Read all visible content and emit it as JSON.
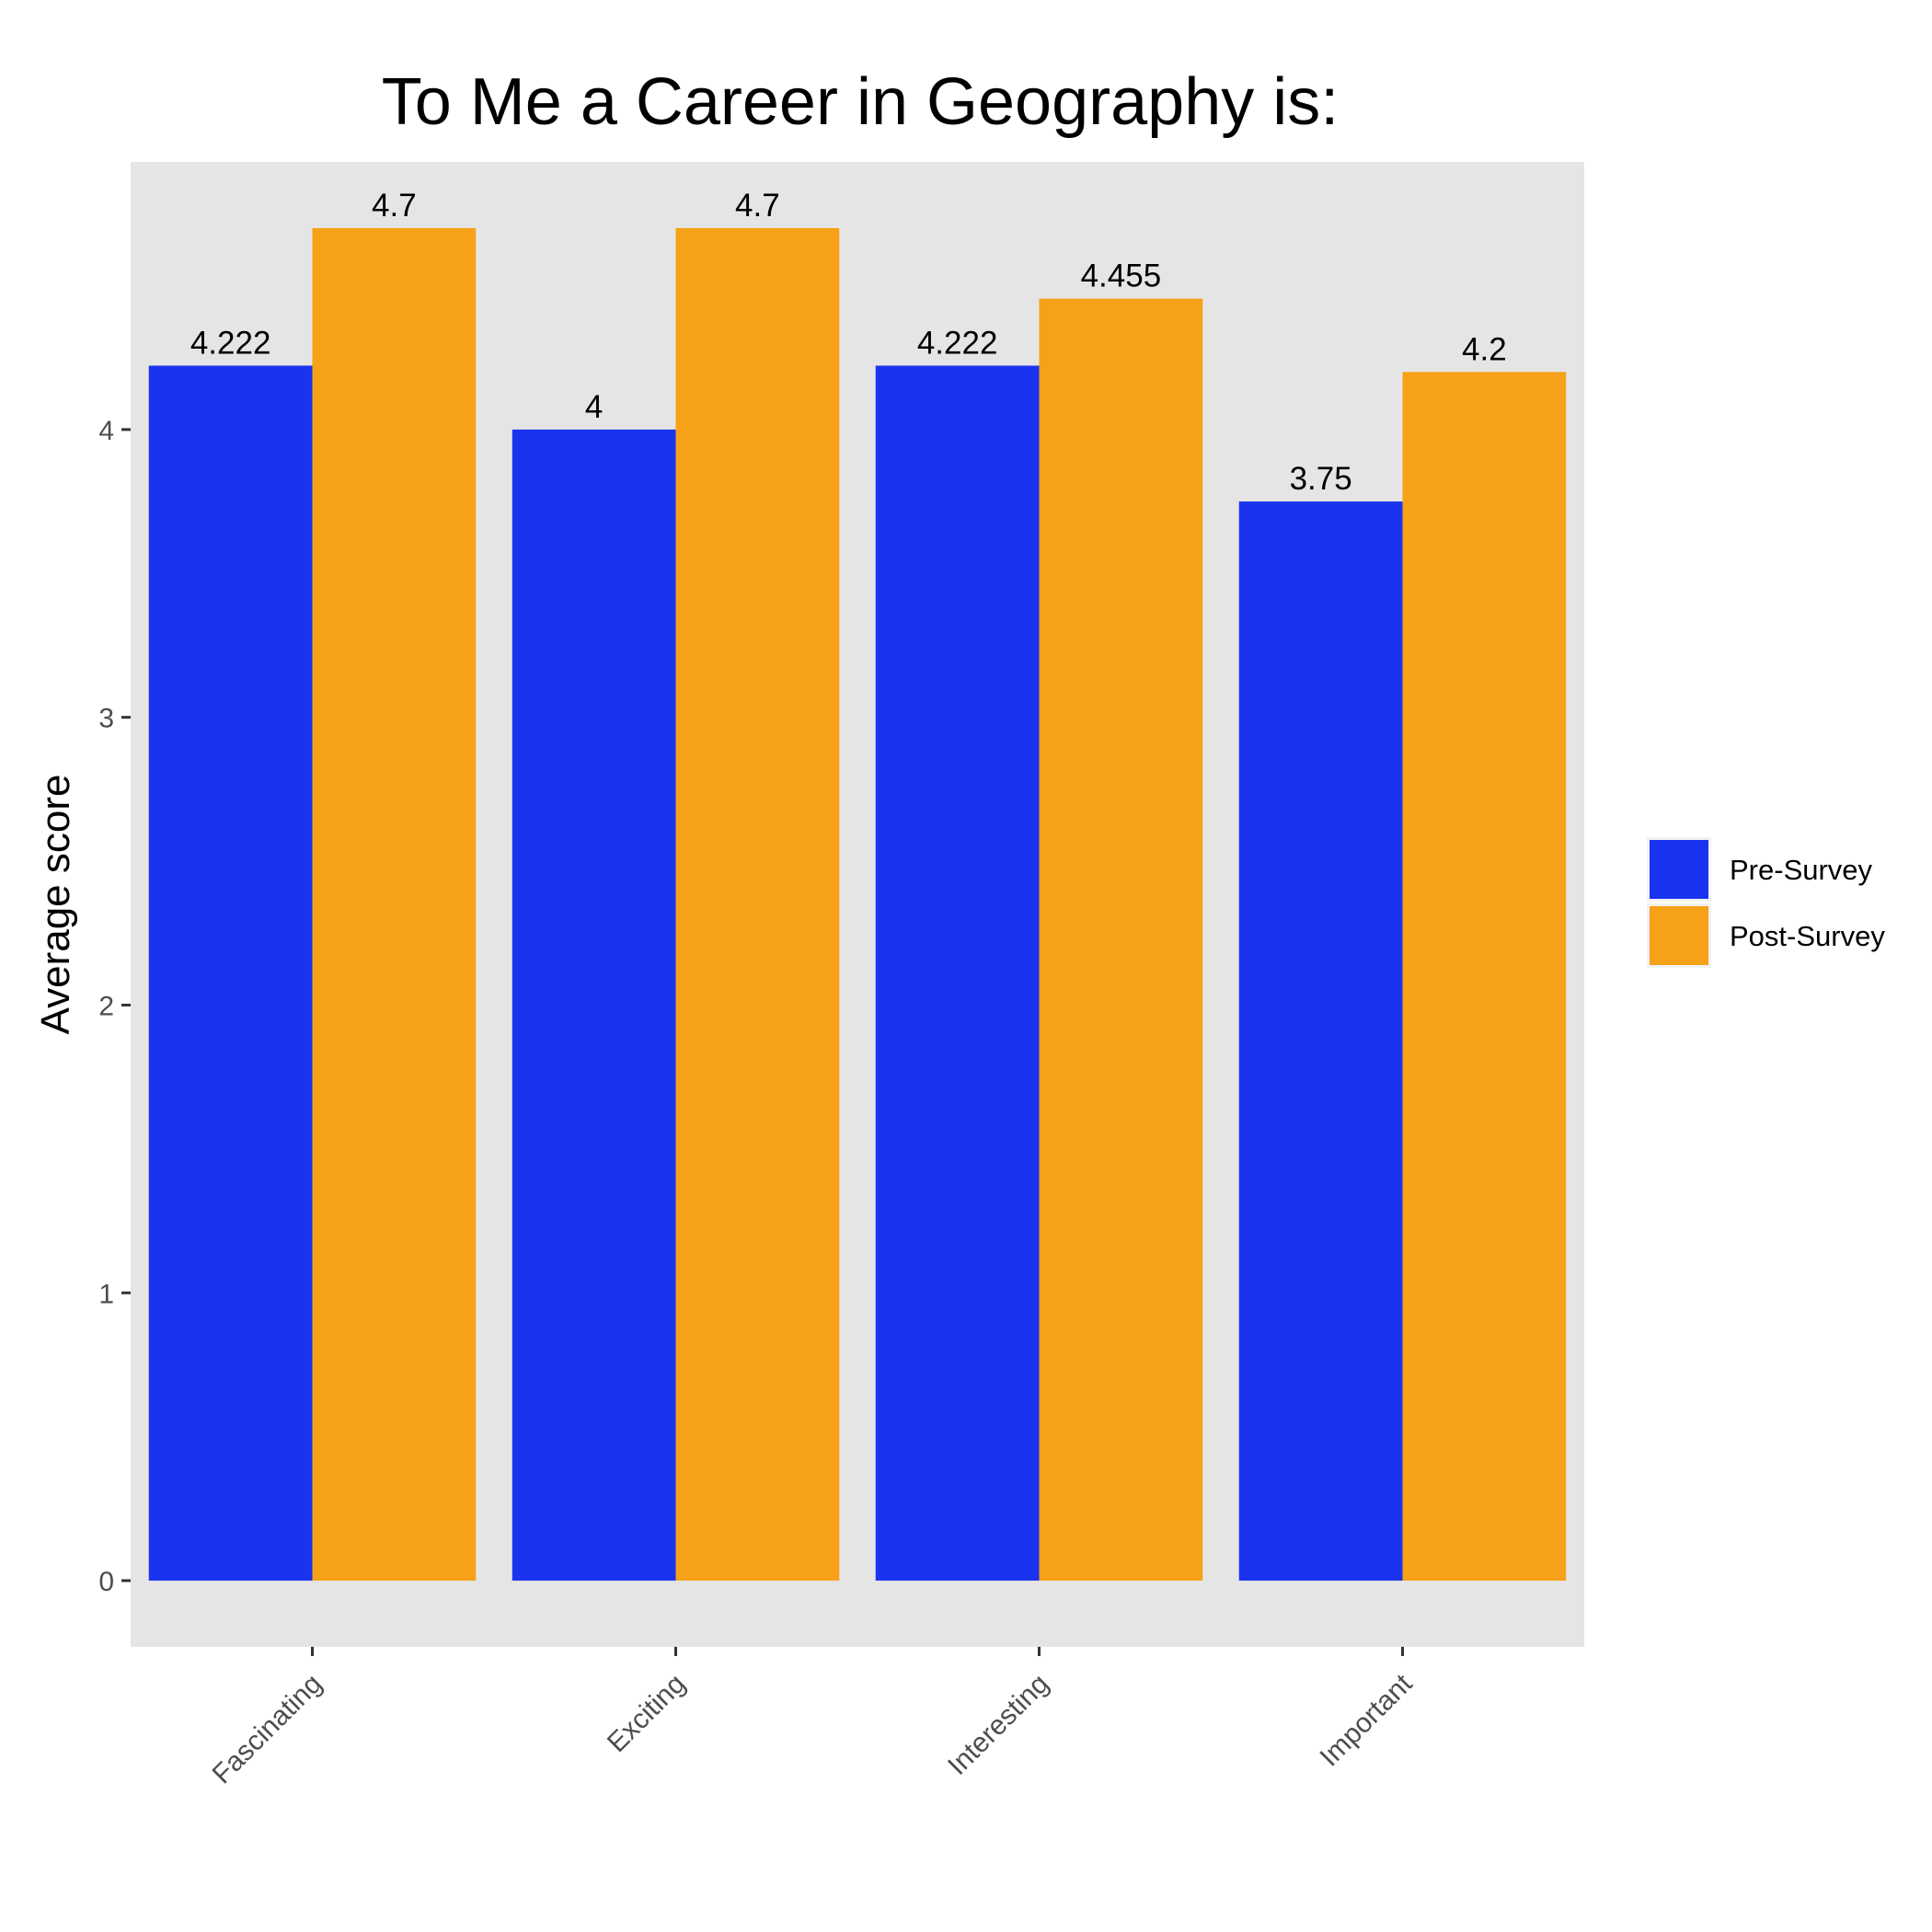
{
  "chart_data": {
    "type": "bar",
    "title": "To Me a Career in Geography is:",
    "xlabel": "",
    "ylabel": "Average score",
    "categories": [
      "Fascinating",
      "Exciting",
      "Interesting",
      "Important"
    ],
    "series": [
      {
        "name": "Pre-Survey",
        "color": "#1a33ee",
        "values": [
          4.222,
          4,
          4.222,
          3.75
        ],
        "labels": [
          "4.222",
          "4",
          "4.222",
          "3.75"
        ]
      },
      {
        "name": "Post-Survey",
        "color": "#f6a118",
        "values": [
          4.7,
          4.7,
          4.455,
          4.2
        ],
        "labels": [
          "4.7",
          "4.7",
          "4.455",
          "4.2"
        ]
      }
    ],
    "ylim": [
      -0.23,
      4.93
    ],
    "yticks": [
      0,
      1,
      2,
      3,
      4
    ],
    "grid": false,
    "panel_background": "#e5e5e5",
    "legend_position": "right"
  }
}
